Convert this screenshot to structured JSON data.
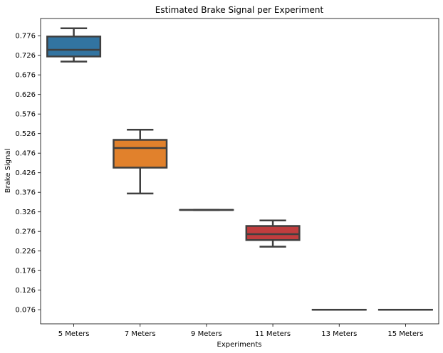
{
  "chart_data": {
    "type": "box",
    "title": "Estimated Brake Signal per Experiment",
    "xlabel": "Experiments",
    "ylabel": "Brake Signal",
    "ylim": [
      0.04,
      0.82
    ],
    "yticks": [
      "0.776",
      "0.726",
      "0.676",
      "0.626",
      "0.576",
      "0.526",
      "0.476",
      "0.426",
      "0.376",
      "0.326",
      "0.276",
      "0.226",
      "0.176",
      "0.126",
      "0.076"
    ],
    "grid": false,
    "categories": [
      "5 Meters",
      "7 Meters",
      "9 Meters",
      "11 Meters",
      "13 Meters",
      "15 Meters"
    ],
    "boxes": [
      {
        "min": 0.71,
        "q1": 0.723,
        "median": 0.74,
        "q3": 0.774,
        "max": 0.795,
        "color": "#3274a1"
      },
      {
        "min": 0.373,
        "q1": 0.439,
        "median": 0.489,
        "q3": 0.51,
        "max": 0.536,
        "color": "#e1812c"
      },
      {
        "min": 0.331,
        "q1": 0.331,
        "median": 0.331,
        "q3": 0.331,
        "max": 0.331,
        "color": "#3a923a"
      },
      {
        "min": 0.237,
        "q1": 0.254,
        "median": 0.269,
        "q3": 0.29,
        "max": 0.304,
        "color": "#c03d3e"
      },
      {
        "min": 0.076,
        "q1": 0.076,
        "median": 0.076,
        "q3": 0.076,
        "max": 0.076,
        "color": "#9372b2"
      },
      {
        "min": 0.076,
        "q1": 0.076,
        "median": 0.076,
        "q3": 0.076,
        "max": 0.076,
        "color": "#845b53"
      }
    ]
  }
}
